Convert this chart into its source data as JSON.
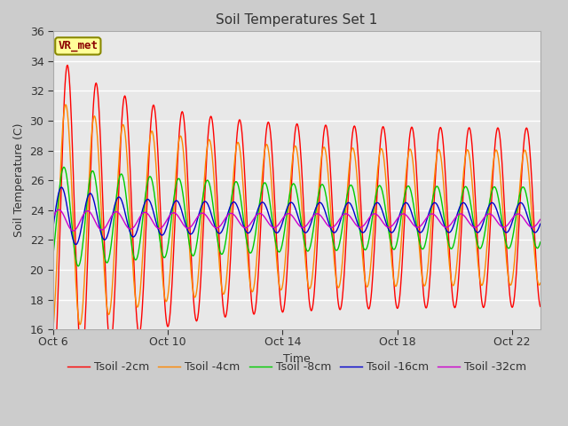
{
  "title": "Soil Temperatures Set 1",
  "xlabel": "Time",
  "ylabel": "Soil Temperature (C)",
  "ylim": [
    16,
    36
  ],
  "yticks": [
    16,
    18,
    20,
    22,
    24,
    26,
    28,
    30,
    32,
    34,
    36
  ],
  "num_days": 17,
  "xtick_days": [
    0,
    4,
    8,
    12,
    16
  ],
  "xtick_labels": [
    "Oct 6",
    "Oct 10",
    "Oct 14",
    "Oct 18",
    "Oct 22"
  ],
  "line_colors": [
    "#ff0000",
    "#ff8800",
    "#00cc00",
    "#0000cc",
    "#cc00cc"
  ],
  "legend_labels": [
    "Tsoil -2cm",
    "Tsoil -4cm",
    "Tsoil -8cm",
    "Tsoil -16cm",
    "Tsoil -32cm"
  ],
  "fig_bg_color": "#cccccc",
  "plot_bg_color": "#d3d3d3",
  "plot_bg_inner": "#e8e8e8",
  "grid_color": "#ffffff",
  "annotation_text": "VR_met",
  "annotation_bg": "#ffff99",
  "annotation_border": "#888800",
  "title_fontsize": 11,
  "label_fontsize": 9,
  "tick_fontsize": 9,
  "legend_fontsize": 9,
  "base_temp": 23.5,
  "amp2_base": 6.0,
  "amp2_extra": 5.0,
  "amp2_decay": 3.0,
  "amp4_base": 4.5,
  "amp4_extra": 3.5,
  "amp4_decay": 3.5,
  "amp8_base": 2.0,
  "amp8_extra": 1.5,
  "amp8_decay": 5.0,
  "amp16_base": 1.0,
  "amp16_extra": 1.2,
  "amp16_decay": 2.0,
  "amp32_base": 0.45,
  "amp32_extra": 0.3,
  "amp32_decay": 3.0,
  "phase2": -1.5707963,
  "phase4": -1.2,
  "phase8": -0.8,
  "phase16": -0.3,
  "phase32": 0.3
}
